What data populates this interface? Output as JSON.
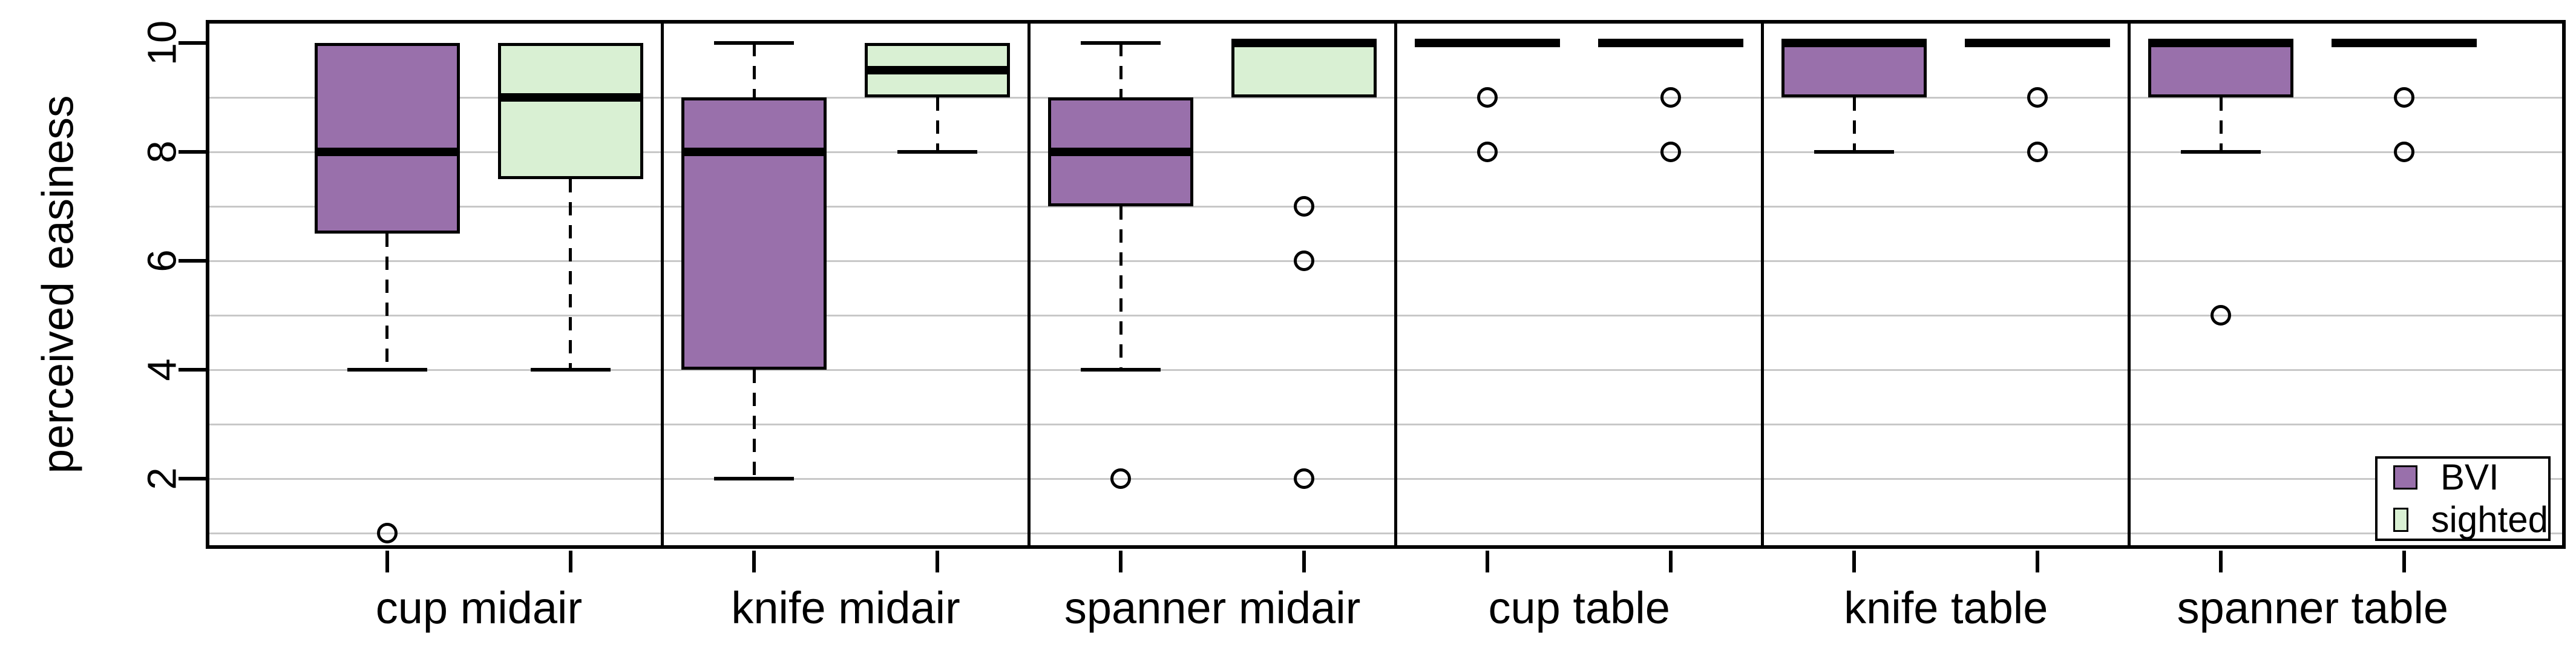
{
  "chart_data": {
    "type": "boxplot",
    "title": "",
    "xlabel": "",
    "ylabel": "perceived easiness",
    "ylim": [
      1,
      10
    ],
    "yticks": [
      2,
      4,
      6,
      8,
      10
    ],
    "gridlines": [
      1,
      2,
      3,
      4,
      5,
      6,
      7,
      8,
      9
    ],
    "grid": "on",
    "groups": [
      "cup midair",
      "knife midair",
      "spanner midair",
      "cup table",
      "knife table",
      "spanner table"
    ],
    "colors": {
      "bvi": "#9970ab",
      "sighted": "#d9f0d3",
      "grid_line": "#c8c8c8",
      "frame": "#000000",
      "background": "#ffffff"
    },
    "series": [
      {
        "name": "BVI",
        "color": "#9970ab",
        "boxes": [
          {
            "group": "cup midair",
            "whisker_low": 4,
            "q1": 6.5,
            "median": 8,
            "q3": 10,
            "whisker_high": 10,
            "outliers": [
              1
            ]
          },
          {
            "group": "knife midair",
            "whisker_low": 2,
            "q1": 4,
            "median": 8,
            "q3": 9,
            "whisker_high": 10,
            "outliers": []
          },
          {
            "group": "spanner midair",
            "whisker_low": 4,
            "q1": 7,
            "median": 8,
            "q3": 9,
            "whisker_high": 10,
            "outliers": [
              2
            ]
          },
          {
            "group": "cup table",
            "whisker_low": 10,
            "q1": 10,
            "median": 10,
            "q3": 10,
            "whisker_high": 10,
            "outliers": [
              9,
              8
            ]
          },
          {
            "group": "knife table",
            "whisker_low": 8,
            "q1": 9,
            "median": 10,
            "q3": 10,
            "whisker_high": 10,
            "outliers": []
          },
          {
            "group": "spanner table",
            "whisker_low": 8,
            "q1": 9,
            "median": 10,
            "q3": 10,
            "whisker_high": 10,
            "outliers": [
              5
            ]
          }
        ]
      },
      {
        "name": "sighted",
        "color": "#d9f0d3",
        "boxes": [
          {
            "group": "cup midair",
            "whisker_low": 4,
            "q1": 7.5,
            "median": 9,
            "q3": 10,
            "whisker_high": 10,
            "outliers": []
          },
          {
            "group": "knife midair",
            "whisker_low": 8,
            "q1": 9,
            "median": 9.5,
            "q3": 10,
            "whisker_high": 10,
            "outliers": []
          },
          {
            "group": "spanner midair",
            "whisker_low": 9,
            "q1": 9,
            "median": 10,
            "q3": 10,
            "whisker_high": 10,
            "outliers": [
              7,
              6,
              2
            ]
          },
          {
            "group": "cup table",
            "whisker_low": 10,
            "q1": 10,
            "median": 10,
            "q3": 10,
            "whisker_high": 10,
            "outliers": [
              9,
              8
            ]
          },
          {
            "group": "knife table",
            "whisker_low": 10,
            "q1": 10,
            "median": 10,
            "q3": 10,
            "whisker_high": 10,
            "outliers": [
              9,
              8
            ]
          },
          {
            "group": "spanner table",
            "whisker_low": 10,
            "q1": 10,
            "median": 10,
            "q3": 10,
            "whisker_high": 10,
            "outliers": [
              9,
              8
            ]
          }
        ]
      }
    ],
    "legend": {
      "position": "bottom-right",
      "items": [
        {
          "label": "BVI",
          "color": "#9970ab"
        },
        {
          "label": "sighted",
          "color": "#d9f0d3"
        }
      ]
    }
  }
}
